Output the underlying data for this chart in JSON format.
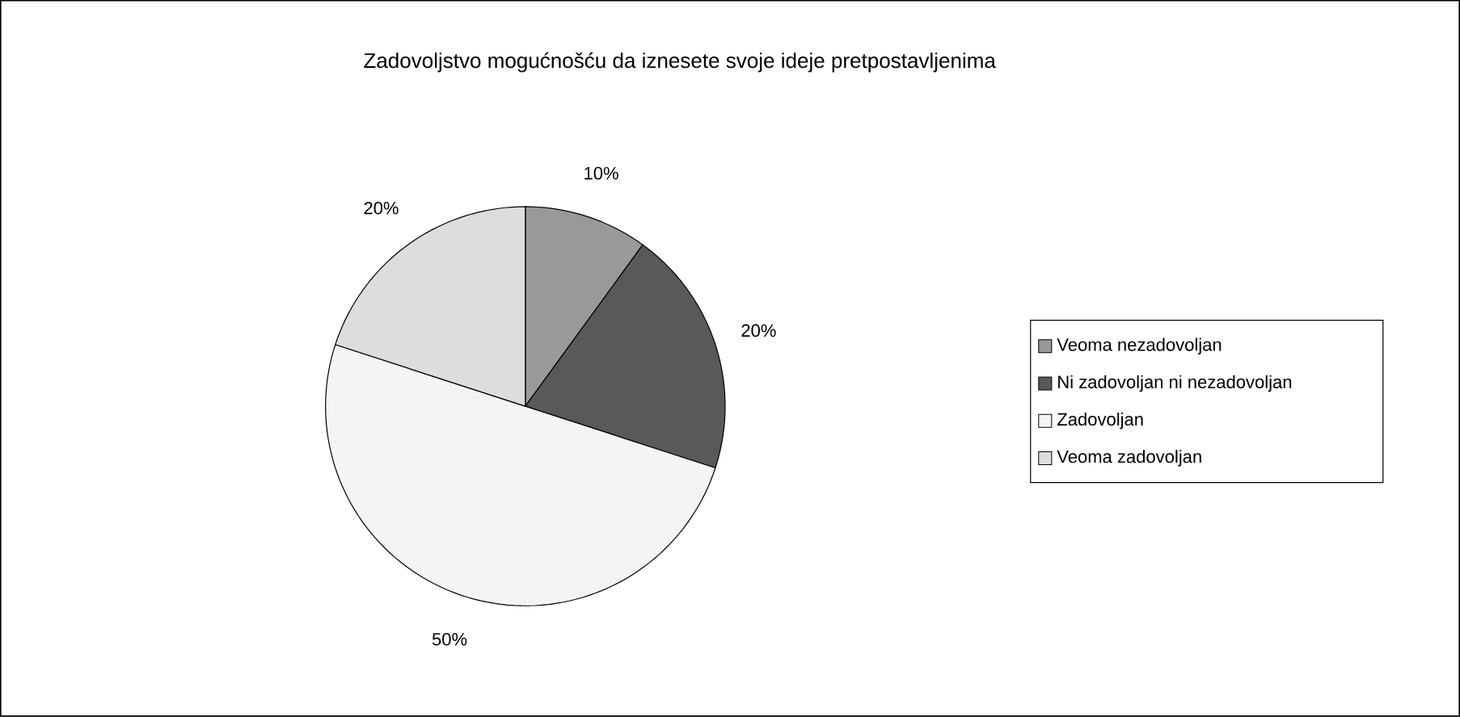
{
  "chart_data": {
    "type": "pie",
    "title": "Zadovoljstvo mogućnošću da iznesete svoje ideje pretpostavljenima",
    "categories": [
      "Veoma nezadovoljan",
      "Ni zadovoljan ni nezadovoljan",
      "Zadovoljan",
      "Veoma zadovoljan"
    ],
    "values": [
      10,
      20,
      50,
      20
    ],
    "colors": [
      "#999999",
      "#595959",
      "#f4f4f4",
      "#dddddd"
    ],
    "value_labels": [
      "10%",
      "20%",
      "50%",
      "20%"
    ],
    "legend": "right"
  }
}
